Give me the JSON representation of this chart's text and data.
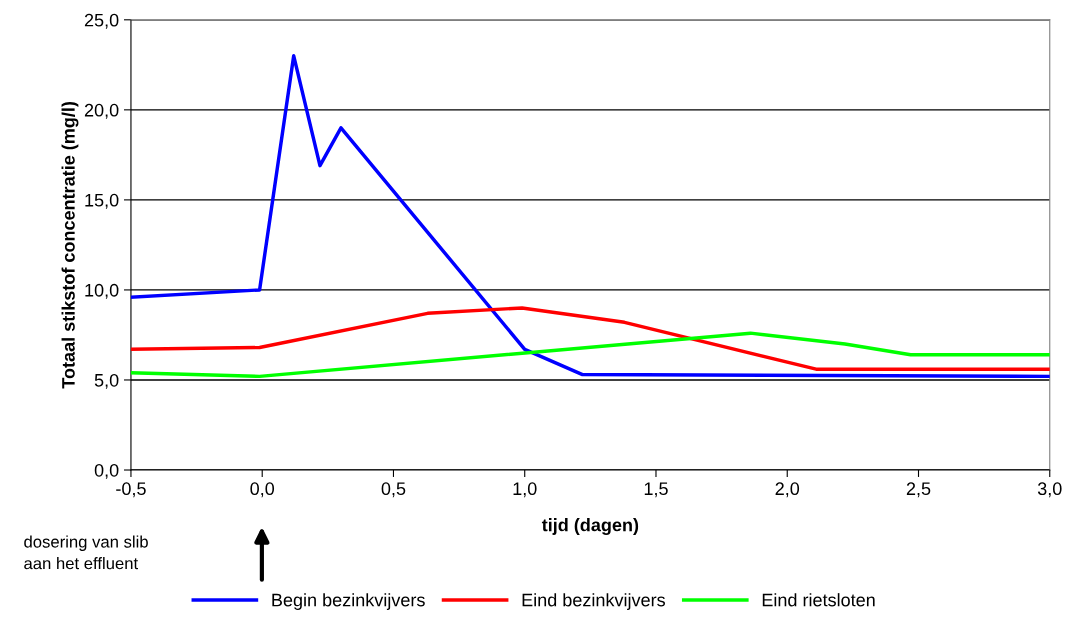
{
  "chart_data": {
    "type": "line",
    "xlabel": "tijd (dagen)",
    "ylabel": "Totaal stikstof concentratie (mg/l)",
    "xlim": [
      -0.5,
      3.0
    ],
    "ylim": [
      0,
      25
    ],
    "xticks": [
      {
        "value": -0.5,
        "label": "-0,5"
      },
      {
        "value": 0,
        "label": "0,0"
      },
      {
        "value": 0.5,
        "label": "0,5"
      },
      {
        "value": 1.0,
        "label": "1,0"
      },
      {
        "value": 1.5,
        "label": "1,5"
      },
      {
        "value": 2.0,
        "label": "2,0"
      },
      {
        "value": 2.5,
        "label": "2,5"
      },
      {
        "value": 3.0,
        "label": "3,0"
      }
    ],
    "yticks": [
      {
        "value": 0,
        "label": "0,0"
      },
      {
        "value": 5,
        "label": "5,0"
      },
      {
        "value": 10,
        "label": "10,0"
      },
      {
        "value": 15,
        "label": "15,0"
      },
      {
        "value": 20,
        "label": "20,0"
      },
      {
        "value": 25,
        "label": "25,0"
      }
    ],
    "grid": "y",
    "legend": "bottom",
    "marker": "none",
    "line_style": "solid",
    "series": [
      {
        "name": "Begin bezinkvijvers",
        "color": "#0000ff",
        "x": [
          -0.5,
          -0.01,
          0.12,
          0.22,
          0.3,
          1.0,
          1.22,
          3.0
        ],
        "values": [
          9.6,
          10.0,
          23.0,
          16.9,
          19.0,
          6.7,
          5.3,
          5.2
        ]
      },
      {
        "name": "Eind bezinkvijvers",
        "color": "#ff0000",
        "x": [
          -0.5,
          -0.01,
          0.63,
          0.99,
          1.38,
          2.11,
          3.0
        ],
        "values": [
          6.7,
          6.8,
          8.7,
          9.0,
          8.2,
          5.6,
          5.6
        ]
      },
      {
        "name": "Eind rietsloten",
        "color": "#00ff00",
        "x": [
          -0.5,
          -0.01,
          1.86,
          2.22,
          2.47,
          3.0
        ],
        "values": [
          5.4,
          5.2,
          7.6,
          7.0,
          6.4,
          6.4
        ]
      }
    ],
    "annotations": [
      "dosering van slib\naan het effluent"
    ]
  }
}
